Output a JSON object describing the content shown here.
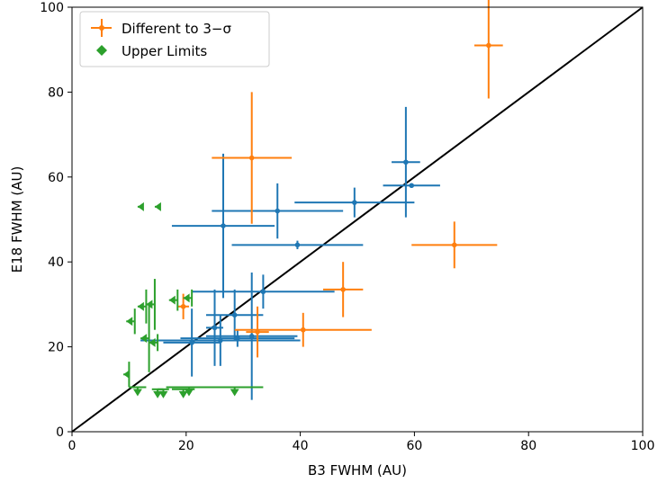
{
  "chart_data": {
    "type": "scatter",
    "xlabel": "B3 FWHM (AU)",
    "ylabel": "E18 FWHM (AU)",
    "xlim": [
      0,
      100
    ],
    "ylim": [
      0,
      100
    ],
    "x_ticks": [
      "0",
      "20",
      "40",
      "60",
      "80",
      "100"
    ],
    "y_ticks": [
      "0",
      "20",
      "40",
      "60",
      "80",
      "100"
    ],
    "grid": false,
    "legend_position": "top-left",
    "reference_line": {
      "label": "",
      "x": [
        0,
        100
      ],
      "y": [
        0,
        100
      ],
      "color": "#000000"
    },
    "series": [
      {
        "key": "consistent",
        "color": "#1f77b4",
        "marker": "point",
        "points": [
          {
            "x": 58.5,
            "y": 63.5,
            "xerr": 2.5,
            "yerr": 13.0
          },
          {
            "x": 59.5,
            "y": 58.0,
            "xerr": 5.0,
            "yerr": 0.5
          },
          {
            "x": 49.5,
            "y": 54.0,
            "xerr": 10.5,
            "yerr": 3.5
          },
          {
            "x": 36.0,
            "y": 52.0,
            "xerr": 11.5,
            "yerr": 6.5
          },
          {
            "x": 26.5,
            "y": 48.5,
            "xerr": 9.0,
            "yerr": 17.0
          },
          {
            "x": 39.5,
            "y": 44.0,
            "xerr": 11.5,
            "yerr": 1.0
          },
          {
            "x": 33.5,
            "y": 33.0,
            "xerr": 12.5,
            "yerr": 4.0
          },
          {
            "x": 28.5,
            "y": 27.5,
            "xerr": 5.0,
            "yerr": 6.0
          },
          {
            "x": 25.0,
            "y": 24.5,
            "xerr": 1.5,
            "yerr": 9.0
          },
          {
            "x": 31.5,
            "y": 22.5,
            "xerr": 8.0,
            "yerr": 15.0
          },
          {
            "x": 26.0,
            "y": 21.5,
            "xerr": 14.0,
            "yerr": 6.0
          },
          {
            "x": 21.0,
            "y": 21.0,
            "xerr": 5.0,
            "yerr": 8.0
          },
          {
            "x": 29.0,
            "y": 22.0,
            "xerr": 10.0,
            "yerr": 2.0
          }
        ]
      },
      {
        "key": "different",
        "name": "Different to 3−σ",
        "color": "#ff7f0e",
        "marker": "point",
        "points": [
          {
            "x": 73.0,
            "y": 91.0,
            "xerr": 2.5,
            "yerr": 12.5
          },
          {
            "x": 31.5,
            "y": 64.5,
            "xerr": 7.0,
            "yerr": 15.5
          },
          {
            "x": 67.0,
            "y": 44.0,
            "xerr": 7.5,
            "yerr": 5.5
          },
          {
            "x": 47.5,
            "y": 33.5,
            "xerr": 3.5,
            "yerr": 6.5
          },
          {
            "x": 40.5,
            "y": 24.0,
            "xerr": 12.0,
            "yerr": 4.0
          },
          {
            "x": 32.5,
            "y": 23.5,
            "xerr": 2.0,
            "yerr": 6.0
          },
          {
            "x": 19.5,
            "y": 29.5,
            "xerr": 1.0,
            "yerr": 3.0
          }
        ]
      },
      {
        "key": "upper",
        "name": "Upper Limits",
        "color": "#2ca02c",
        "marker": "diamond",
        "points": [
          {
            "x": 12.5,
            "y": 53.0,
            "limit": "x",
            "len": 1.0
          },
          {
            "x": 15.5,
            "y": 53.0,
            "limit": "x",
            "len": 1.0
          },
          {
            "x": 11.0,
            "y": 26.0,
            "limit": "x",
            "len": 1.5,
            "yerr": 3.0
          },
          {
            "x": 13.0,
            "y": 29.5,
            "limit": "x",
            "len": 1.5,
            "yerr": 4.0
          },
          {
            "x": 14.5,
            "y": 30.0,
            "limit": "x",
            "len": 1.5,
            "yerr": 6.0
          },
          {
            "x": 13.5,
            "y": 22.0,
            "limit": "x",
            "len": 1.5,
            "yerr": 8.0
          },
          {
            "x": 15.0,
            "y": 21.0,
            "limit": "x",
            "len": 1.5,
            "yerr": 2.0
          },
          {
            "x": 18.5,
            "y": 31.0,
            "limit": "x",
            "len": 1.5,
            "yerr": 2.5
          },
          {
            "x": 21.0,
            "y": 31.5,
            "limit": "x",
            "len": 1.5,
            "yerr": 2.0
          },
          {
            "x": 10.0,
            "y": 13.5,
            "limit": "x",
            "len": 1.0,
            "yerr": 3.0
          },
          {
            "x": 11.5,
            "y": 10.5,
            "limit": "y",
            "len": 1.5,
            "xerr": 1.5
          },
          {
            "x": 15.0,
            "y": 10.0,
            "limit": "y",
            "len": 1.5,
            "xerr": 1.0
          },
          {
            "x": 16.0,
            "y": 10.0,
            "limit": "y",
            "len": 1.5,
            "xerr": 1.0
          },
          {
            "x": 19.5,
            "y": 10.0,
            "limit": "y",
            "len": 1.5,
            "xerr": 2.0
          },
          {
            "x": 20.5,
            "y": 10.5,
            "limit": "y",
            "len": 1.5,
            "xerr": 4.0
          },
          {
            "x": 28.5,
            "y": 10.5,
            "limit": "y",
            "len": 1.5,
            "xerr": 5.0
          }
        ]
      }
    ]
  }
}
